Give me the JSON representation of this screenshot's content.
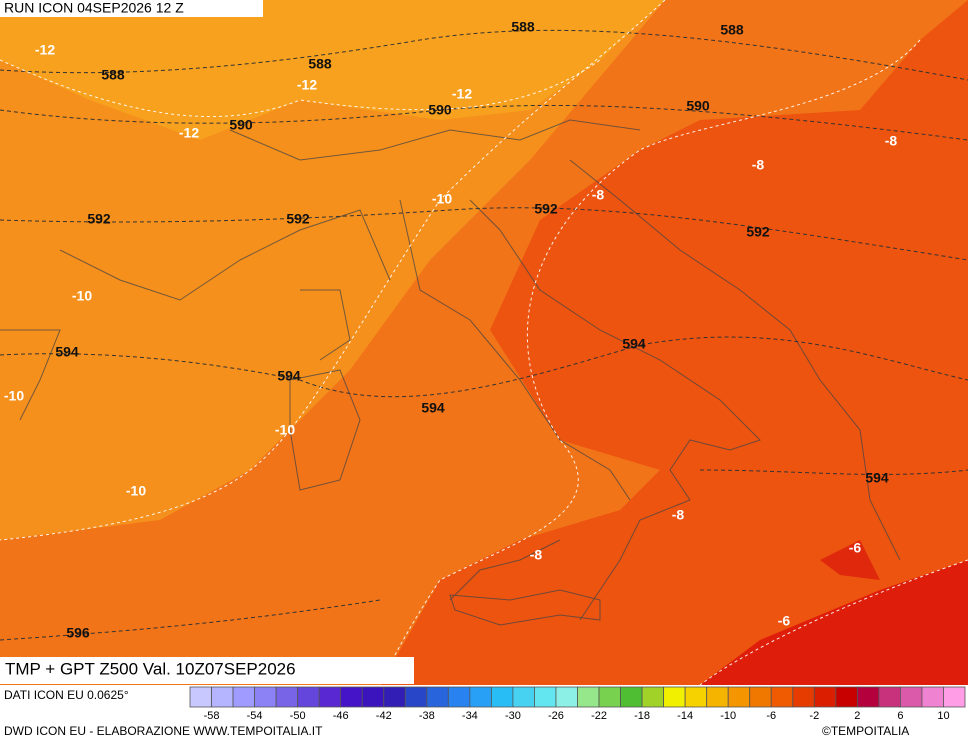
{
  "header": {
    "run": "RUN ICON 04SEP2026 12 Z"
  },
  "map": {
    "geopotential_labels": [
      588,
      588,
      588,
      588,
      590,
      590,
      590,
      592,
      592,
      592,
      592,
      594,
      594,
      594,
      594,
      594,
      596
    ],
    "temperature_labels": [
      -12,
      -12,
      -12,
      -12,
      -10,
      -10,
      -10,
      -10,
      -10,
      -8,
      -8,
      -8,
      -8,
      -8,
      -6,
      -6
    ]
  },
  "footer": {
    "title": "TMP + GPT Z500 Val. 10Z07SEP2026",
    "source": "DATI ICON EU 0.0625°",
    "credit": "DWD ICON EU - ELABORAZIONE WWW.TEMPOITALIA.IT",
    "copyright": "©TEMPOITALIA"
  },
  "colorbar": {
    "colors": [
      "#c8c8ff",
      "#b4b4ff",
      "#a09cff",
      "#8c82f5",
      "#7864e6",
      "#6446dc",
      "#5a28d2",
      "#4614c8",
      "#3c14be",
      "#321eb4",
      "#2846c8",
      "#2864dc",
      "#2882f0",
      "#28a0f5",
      "#28bef5",
      "#46d2f0",
      "#64e6f0",
      "#8cf0e6",
      "#96e68c",
      "#78d250",
      "#50be32",
      "#a0d228",
      "#f0f000",
      "#f5d200",
      "#f5b400",
      "#f59600",
      "#f07800",
      "#f05a00",
      "#e63c00",
      "#dc1e00",
      "#c80000",
      "#b4003c",
      "#c8327d",
      "#dc5aaa",
      "#f082d2",
      "#ff9ee6"
    ],
    "ticks": [
      -58,
      -54,
      -50,
      -46,
      -42,
      -38,
      -34,
      -30,
      -26,
      -22,
      -18,
      -14,
      -10,
      -6,
      -2,
      2,
      6,
      10
    ]
  }
}
